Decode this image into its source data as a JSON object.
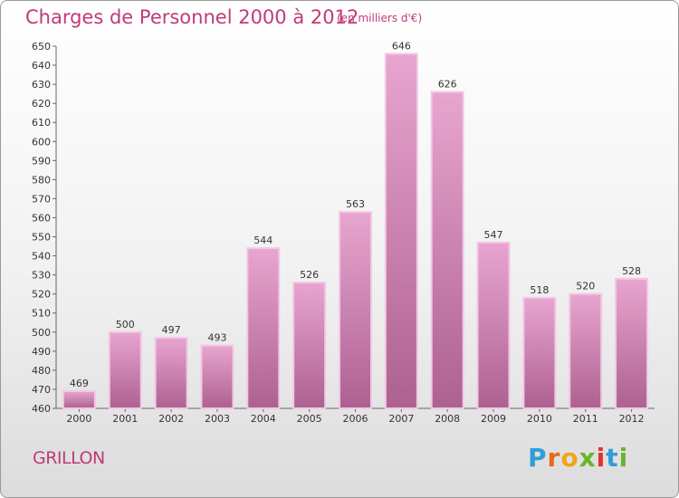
{
  "header": {
    "title": "Charges de Personnel 2000 à 2012",
    "subtitle": "(en milliers d'€)"
  },
  "footer": {
    "commune": "GRILLON",
    "logo_letters": [
      "P",
      "r",
      "o",
      "x",
      "i",
      "t",
      "i"
    ]
  },
  "colors": {
    "accent": "#c03a78",
    "bar_top": "#e8a5d0",
    "bar_bottom": "#ad6191",
    "bar_edge": "#f1c8e3"
  },
  "chart_data": {
    "type": "bar",
    "categories": [
      "2000",
      "2001",
      "2002",
      "2003",
      "2004",
      "2005",
      "2006",
      "2007",
      "2008",
      "2009",
      "2010",
      "2011",
      "2012"
    ],
    "values": [
      469,
      500,
      497,
      493,
      544,
      526,
      563,
      646,
      626,
      547,
      518,
      520,
      528
    ],
    "ylim": [
      460,
      650
    ],
    "ytick_step": 10,
    "grid": false,
    "data_labels": true
  }
}
